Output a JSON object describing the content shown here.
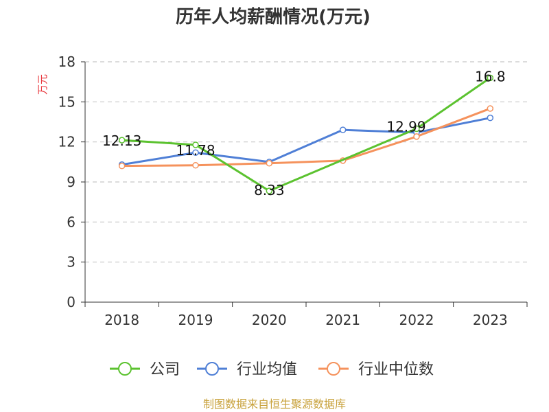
{
  "chart_data": {
    "type": "line",
    "title": "历年人均薪酬情况(万元)",
    "ylabel": "万元",
    "categories": [
      "2018",
      "2019",
      "2020",
      "2021",
      "2022",
      "2023"
    ],
    "ylim": [
      0,
      18
    ],
    "yticks": [
      0,
      3,
      6,
      9,
      12,
      15,
      18
    ],
    "grid": true,
    "legend_position": "bottom",
    "series": [
      {
        "name": "公司",
        "color": "#5bc22f",
        "values": [
          12.13,
          11.78,
          8.33,
          null,
          12.99,
          16.8
        ],
        "labels": [
          "12.13",
          "11.78",
          "8.33",
          "",
          "12.99",
          "16.8"
        ]
      },
      {
        "name": "行业均值",
        "color": "#4f7fd6",
        "values": [
          10.3,
          11.2,
          10.5,
          12.9,
          12.7,
          13.8
        ]
      },
      {
        "name": "行业中位数",
        "color": "#f5925c",
        "values": [
          10.2,
          10.25,
          10.4,
          10.6,
          12.4,
          14.5
        ]
      }
    ],
    "source": "制图数据来自恒生聚源数据库"
  }
}
